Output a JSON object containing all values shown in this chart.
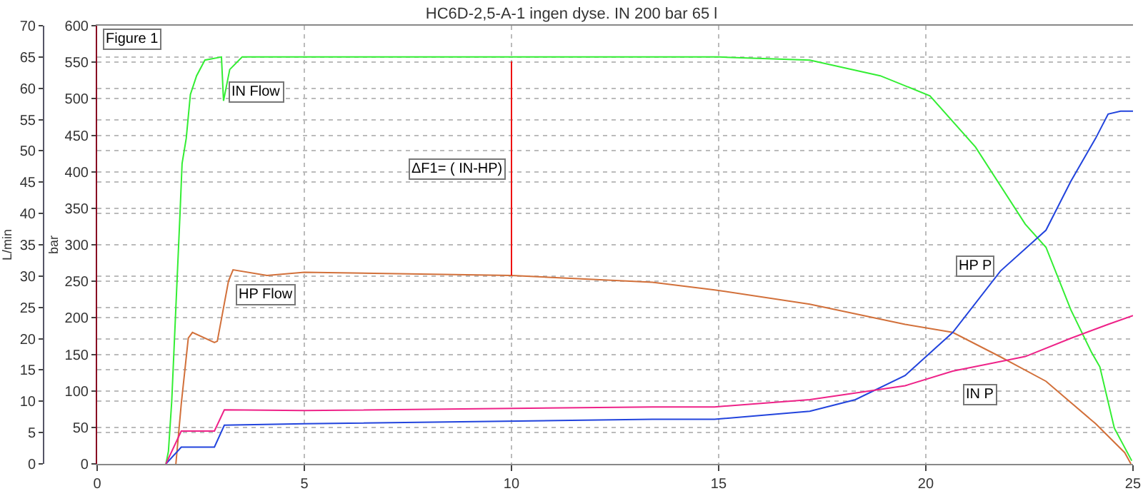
{
  "chart_data": {
    "type": "line",
    "title": "HC6D-2,5-A-1 ingen dyse. IN 200 bar 65 l",
    "ylabel": "L/min",
    "y2label": "bar",
    "xlim": [
      0,
      25
    ],
    "xticks": [
      0,
      5,
      10,
      15,
      20,
      25
    ],
    "ylim": [
      0,
      70
    ],
    "yticks": [
      0,
      5,
      10,
      15,
      20,
      25,
      30,
      35,
      40,
      45,
      50,
      55,
      60,
      65,
      70
    ],
    "y2lim": [
      0,
      600
    ],
    "y2ticks": [
      0,
      50,
      100,
      150,
      200,
      250,
      300,
      350,
      400,
      450,
      500,
      550,
      600
    ],
    "grid": true,
    "legend": false,
    "marker": "none",
    "line_style": "solid",
    "annotations": [
      "Figure 1",
      {
        "text": "ΔF1= ( IN-HP)",
        "x": 10,
        "y": 47
      }
    ],
    "series": [
      {
        "name": "IN Flow",
        "color": "#33ee33",
        "x": [
          1.66,
          1.72,
          1.8,
          1.9,
          2.0,
          2.05,
          2.15,
          2.25,
          2.4,
          2.6,
          3.0,
          3.05,
          3.2,
          3.5,
          5,
          10,
          15,
          17.2,
          18.9,
          20.1,
          21.2,
          22.4,
          22.9,
          23.5,
          24.0,
          24.2,
          24.55,
          24.97
        ],
        "values": [
          0,
          2,
          10,
          25,
          40,
          48,
          52,
          59,
          62,
          64.5,
          65,
          58,
          63,
          65,
          65,
          65,
          65,
          64.5,
          62,
          58.8,
          50.6,
          38.3,
          34.6,
          24.6,
          17.8,
          15.5,
          5.7,
          0.5
        ]
      },
      {
        "name": "HP Flow",
        "color": "#d2703a",
        "x": [
          1.9,
          2.03,
          2.2,
          2.3,
          2.83,
          2.9,
          3.17,
          3.28,
          4.1,
          5,
          10,
          13.4,
          14.9,
          17.2,
          19.5,
          20.65,
          21.8,
          22.9,
          24.1,
          24.8,
          24.95
        ],
        "values": [
          0,
          9.6,
          20.1,
          21,
          19.4,
          19.6,
          29.2,
          31,
          30.1,
          30.6,
          30.1,
          29,
          27.8,
          25.5,
          22.3,
          21,
          17.1,
          13.2,
          6.4,
          1.8,
          0
        ]
      },
      {
        "name": "HP P",
        "color": "#2244dd",
        "axis": "y2",
        "x": [
          1.66,
          2.03,
          2.83,
          3.07,
          5,
          13.4,
          14.9,
          17.2,
          18.3,
          19.5,
          20.65,
          21.8,
          22.9,
          23.5,
          24.1,
          24.4,
          24.7,
          25
        ],
        "values": [
          0,
          23,
          23,
          53,
          55,
          61,
          61,
          72,
          88,
          121,
          180,
          264,
          320,
          387,
          446,
          479,
          483,
          483
        ]
      },
      {
        "name": "IN P",
        "color": "#ee2288",
        "axis": "y2",
        "x": [
          1.66,
          2.03,
          2.83,
          3.07,
          5,
          13.4,
          14.9,
          17.2,
          19.5,
          20.65,
          22.4,
          23.5,
          24.4,
          25
        ],
        "values": [
          0,
          45,
          45,
          74,
          73,
          78,
          78,
          88,
          107,
          127,
          147,
          172,
          191,
          203
        ]
      },
      {
        "color": "#ee1111",
        "x": [
          10,
          10
        ],
        "values": [
          30.1,
          64.3
        ]
      }
    ]
  }
}
